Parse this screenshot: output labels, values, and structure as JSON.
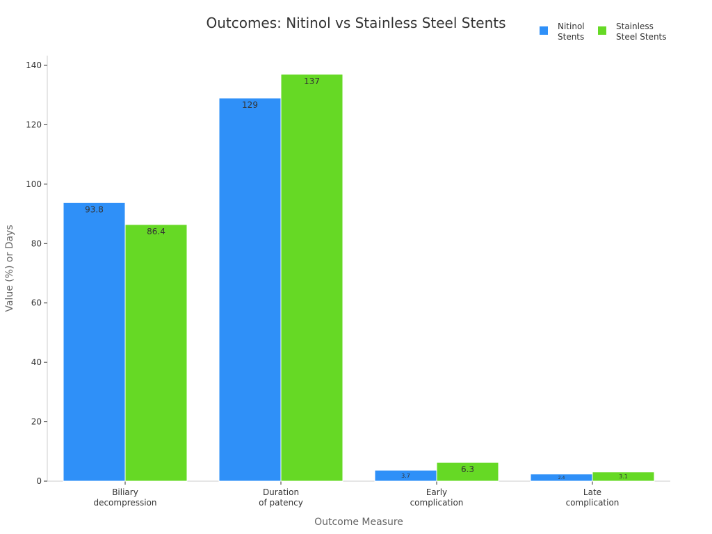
{
  "chart_data": {
    "type": "bar",
    "title": "Outcomes: Nitinol vs Stainless Steel Stents",
    "xlabel": "Outcome Measure",
    "ylabel": "Value (%) or Days",
    "categories": [
      [
        "Biliary",
        "decompression"
      ],
      [
        "Duration",
        "of patency"
      ],
      [
        "Early",
        "complication"
      ],
      [
        "Late",
        "complication"
      ]
    ],
    "series": [
      {
        "name": [
          "Nitinol",
          "Stents"
        ],
        "color": "#2f90f8",
        "values": [
          93.8,
          129,
          3.7,
          2.4
        ],
        "labels": [
          "93.8",
          "129",
          "3.7",
          "2.4"
        ]
      },
      {
        "name": [
          "Stainless",
          "Steel Stents"
        ],
        "color": "#66d925",
        "values": [
          86.4,
          137,
          6.3,
          3.1
        ],
        "labels": [
          "86.4",
          "137",
          "6.3",
          "3.1"
        ]
      }
    ],
    "ylim": [
      0,
      140
    ],
    "yticks": [
      0,
      20,
      40,
      60,
      80,
      100,
      120,
      140
    ],
    "grid": false,
    "legend": "top-right"
  }
}
